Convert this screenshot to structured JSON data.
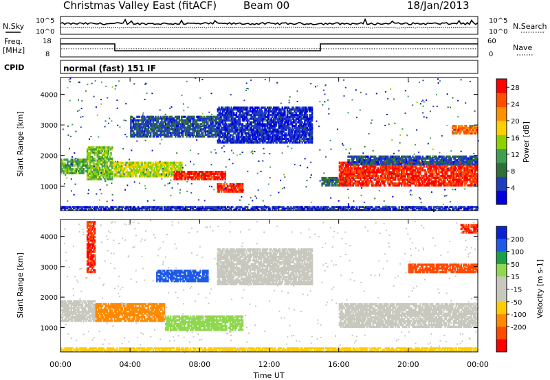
{
  "header": {
    "title": "Christmas Valley East (fitACF)",
    "beam": "Beam 00",
    "date": "18/Jan/2013"
  },
  "noise_panel": {
    "left_label": "N.Sky",
    "right_label": "N.Search",
    "ticks": [
      "10^5",
      "10^0"
    ]
  },
  "freq_panel": {
    "left_label_line1": "Freq.",
    "left_label_line2": "[MHz]",
    "left_ticks": [
      "18",
      "8"
    ],
    "right_label": "Nave",
    "right_ticks": [
      "60",
      "0"
    ]
  },
  "cpid_panel": {
    "label": "CPID",
    "program": "normal (fast) 151 IF"
  },
  "colors": {
    "power": [
      "#0000e0",
      "#1e3cc0",
      "#2f6f3a",
      "#3ea050",
      "#8fd000",
      "#ffd000",
      "#ff9000",
      "#ff5000",
      "#ff0000"
    ],
    "velocity": [
      "#0a23d0",
      "#1e5ae8",
      "#1aa04a",
      "#8fd84f",
      "#c8c8bf",
      "#c8c8bf",
      "#ffcc00",
      "#ff8a00",
      "#ff4a00",
      "#ff0000"
    ]
  },
  "chart_data": [
    {
      "type": "heatmap",
      "panel": "power",
      "ylabel": "Slant Range [km]",
      "yticks": [
        1000,
        2000,
        3000,
        4000
      ],
      "ylim": [
        200,
        4550
      ],
      "colorbar_label": "Power [dB]",
      "colorbar_ticks": [
        4,
        8,
        12,
        16,
        20,
        24,
        28
      ],
      "colorbar_range": [
        0,
        30
      ],
      "regions": [
        {
          "t": [
            0.0,
            1.5
          ],
          "r": [
            1400,
            1900
          ],
          "value": 12
        },
        {
          "t": [
            1.5,
            3.0
          ],
          "r": [
            1200,
            2300
          ],
          "value": 14
        },
        {
          "t": [
            3.0,
            7.0
          ],
          "r": [
            1300,
            1800
          ],
          "value": 16
        },
        {
          "t": [
            6.5,
            9.5
          ],
          "r": [
            1200,
            1500
          ],
          "value": 27
        },
        {
          "t": [
            9.0,
            10.5
          ],
          "r": [
            800,
            1100
          ],
          "value": 27
        },
        {
          "t": [
            4.0,
            9.0
          ],
          "r": [
            2600,
            3300
          ],
          "value": 6
        },
        {
          "t": [
            9.0,
            14.5
          ],
          "r": [
            2400,
            3600
          ],
          "value": 4
        },
        {
          "t": [
            15.0,
            16.5
          ],
          "r": [
            1000,
            1300
          ],
          "value": 8
        },
        {
          "t": [
            16.0,
            24.0
          ],
          "r": [
            1000,
            1800
          ],
          "value": 27
        },
        {
          "t": [
            16.5,
            24.0
          ],
          "r": [
            1700,
            2000
          ],
          "value": 6
        },
        {
          "t": [
            22.5,
            24.0
          ],
          "r": [
            2700,
            3000
          ],
          "value": 24
        },
        {
          "t": [
            0.0,
            24.0
          ],
          "r": [
            200,
            350
          ],
          "value": 4
        }
      ]
    },
    {
      "type": "heatmap",
      "panel": "velocity",
      "ylabel": "Slant Range [km]",
      "yticks": [
        1000,
        2000,
        3000,
        4000
      ],
      "ylim": [
        200,
        4550
      ],
      "colorbar_label": "Velocity [m s-1]",
      "colorbar_ticks": [
        200,
        100,
        50,
        15,
        -15,
        -50,
        -100,
        -200
      ],
      "regions": [
        {
          "t": [
            0.0,
            2.0
          ],
          "r": [
            1200,
            1900
          ],
          "value": 0
        },
        {
          "t": [
            2.0,
            6.0
          ],
          "r": [
            1200,
            1800
          ],
          "value": -80
        },
        {
          "t": [
            6.0,
            10.5
          ],
          "r": [
            900,
            1400
          ],
          "value": 40
        },
        {
          "t": [
            5.5,
            8.5
          ],
          "r": [
            2500,
            2900
          ],
          "value": 180
        },
        {
          "t": [
            9.0,
            14.5
          ],
          "r": [
            2400,
            3600
          ],
          "value": 0
        },
        {
          "t": [
            16.0,
            24.0
          ],
          "r": [
            1000,
            1800
          ],
          "value": 0
        },
        {
          "t": [
            20.0,
            24.0
          ],
          "r": [
            2800,
            3100
          ],
          "value": -150
        },
        {
          "t": [
            23.0,
            24.0
          ],
          "r": [
            4100,
            4400
          ],
          "value": -200
        },
        {
          "t": [
            1.5,
            2.0
          ],
          "r": [
            2800,
            4500
          ],
          "value": -200
        },
        {
          "t": [
            0.0,
            24.0
          ],
          "r": [
            200,
            350
          ],
          "value": -40
        }
      ]
    }
  ],
  "xaxis": {
    "label": "Time UT",
    "ticks": [
      "00:00",
      "04:00",
      "08:00",
      "12:00",
      "16:00",
      "20:00",
      "00:00"
    ],
    "tick_hours": [
      0,
      4,
      8,
      12,
      16,
      20,
      24
    ]
  }
}
